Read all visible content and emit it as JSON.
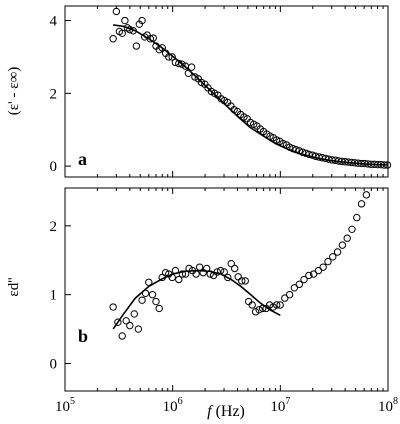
{
  "chart_data": [
    {
      "type": "scatter",
      "panel_label": "a",
      "ylabel": "(ε' - ε∞)",
      "ylim": [
        -0.3,
        4.4
      ],
      "y_ticks": [
        "0",
        "2",
        "4"
      ],
      "xscale": "log",
      "xlim": [
        100000,
        100000000
      ],
      "grid": false,
      "series": [
        {
          "style": "open-circles",
          "x": [
            280000,
            300000,
            320000,
            340000,
            360000,
            380000,
            400000,
            430000,
            460000,
            490000,
            520000,
            550000,
            580000,
            620000,
            660000,
            700000,
            750000,
            800000,
            860000,
            920000,
            990000,
            1060000,
            1140000,
            1220000,
            1310000,
            1400000,
            1500000,
            1610000,
            1730000,
            1850000,
            1990000,
            2130000,
            2290000,
            2450000,
            2630000,
            2820000,
            3020000,
            3240000,
            3470000,
            3720000,
            3990000,
            4280000,
            4590000,
            4920000,
            5280000,
            5660000,
            6070000,
            6510000,
            6980000,
            7480000,
            8020000,
            8600000,
            9220000,
            9890000,
            10600000,
            11400000,
            12200000,
            13100000,
            14000000,
            15000000,
            16100000,
            17300000,
            18500000,
            19900000,
            21300000,
            22900000,
            24500000,
            26300000,
            28200000,
            30200000,
            32400000,
            34700000,
            37200000,
            39900000,
            42800000,
            45900000,
            49200000,
            52800000,
            56600000,
            60700000,
            65100000,
            69800000,
            74800000,
            80200000,
            86000000,
            92200000,
            98900000
          ],
          "y": [
            3.5,
            4.25,
            3.7,
            3.65,
            4.0,
            3.8,
            3.75,
            3.72,
            3.3,
            3.9,
            4.0,
            3.55,
            3.6,
            3.5,
            3.52,
            3.3,
            3.2,
            3.25,
            3.1,
            3.0,
            3.0,
            2.85,
            2.82,
            2.8,
            2.75,
            2.55,
            2.72,
            2.45,
            2.4,
            2.3,
            2.25,
            2.15,
            2.05,
            2.0,
            1.95,
            1.85,
            1.8,
            1.75,
            1.65,
            1.55,
            1.5,
            1.42,
            1.35,
            1.3,
            1.2,
            1.15,
            1.1,
            1.02,
            0.95,
            0.88,
            0.82,
            0.78,
            0.72,
            0.68,
            0.62,
            0.58,
            0.52,
            0.48,
            0.45,
            0.42,
            0.38,
            0.35,
            0.32,
            0.3,
            0.27,
            0.25,
            0.23,
            0.21,
            0.19,
            0.17,
            0.16,
            0.14,
            0.13,
            0.12,
            0.11,
            0.1,
            0.09,
            0.08,
            0.07,
            0.07,
            0.06,
            0.05,
            0.05,
            0.04,
            0.04,
            0.03,
            0.03
          ]
        },
        {
          "style": "fit-line",
          "x": [
            280000,
            350000,
            450000,
            600000,
            800000,
            1000000,
            1300000,
            1700000,
            2200000,
            3000000,
            4000000,
            5200000,
            7000000,
            9000000,
            12000000,
            16000000,
            22000000,
            30000000,
            42000000,
            60000000,
            80000000,
            100000000
          ],
          "y": [
            3.88,
            3.84,
            3.72,
            3.5,
            3.25,
            3.02,
            2.74,
            2.42,
            2.1,
            1.72,
            1.37,
            1.07,
            0.82,
            0.62,
            0.45,
            0.32,
            0.22,
            0.15,
            0.1,
            0.06,
            0.04,
            0.03
          ]
        }
      ]
    },
    {
      "type": "scatter",
      "panel_label": "b",
      "ylabel": "εd''",
      "ylim": [
        -0.4,
        2.55
      ],
      "y_ticks": [
        "0",
        "1",
        "2"
      ],
      "xscale": "log",
      "xlim": [
        100000,
        100000000
      ],
      "xlabel_italic": "f",
      "xlabel_rest": " (Hz)",
      "x_ticks": [
        {
          "base": "10",
          "exp": "5"
        },
        {
          "base": "10",
          "exp": "6"
        },
        {
          "base": "10",
          "exp": "7"
        },
        {
          "base": "10",
          "exp": "8"
        }
      ],
      "grid": false,
      "series": [
        {
          "style": "open-circles",
          "x": [
            280000,
            310000,
            340000,
            370000,
            400000,
            440000,
            480000,
            520000,
            560000,
            600000,
            650000,
            700000,
            750000,
            800000,
            860000,
            920000,
            990000,
            1060000,
            1140000,
            1230000,
            1320000,
            1420000,
            1530000,
            1650000,
            1780000,
            1920000,
            2070000,
            2230000,
            2400000,
            2590000,
            2790000,
            3010000,
            3250000,
            3500000,
            3770000,
            4060000,
            4380000,
            4720000,
            5080000,
            5480000,
            5900000,
            6360000,
            6860000,
            7390000,
            7960000,
            8580000,
            9250000,
            9960000,
            11000000,
            12200000,
            13500000,
            15000000,
            16600000,
            18400000,
            20400000,
            22600000,
            25000000,
            27700000,
            30700000,
            34000000,
            37700000,
            41800000,
            46300000,
            51300000,
            56800000,
            63000000
          ],
          "y": [
            0.82,
            0.6,
            0.4,
            0.62,
            0.55,
            0.72,
            0.5,
            0.92,
            1.02,
            1.18,
            1.0,
            0.9,
            0.8,
            1.25,
            1.32,
            1.3,
            1.25,
            1.35,
            1.22,
            1.3,
            1.3,
            1.38,
            1.35,
            1.3,
            1.4,
            1.32,
            1.38,
            1.3,
            1.28,
            1.33,
            1.35,
            1.33,
            1.25,
            1.45,
            1.38,
            1.26,
            1.2,
            1.2,
            0.9,
            0.85,
            0.75,
            0.78,
            0.8,
            0.8,
            0.85,
            0.82,
            0.85,
            0.85,
            0.95,
            1.0,
            1.1,
            1.15,
            1.22,
            1.28,
            1.3,
            1.35,
            1.4,
            1.48,
            1.55,
            1.62,
            1.72,
            1.82,
            1.95,
            2.12,
            2.32,
            2.45
          ]
        },
        {
          "style": "fit-line",
          "x": [
            280000,
            350000,
            450000,
            600000,
            800000,
            1000000,
            1300000,
            1700000,
            2200000,
            2800000,
            3500000,
            4300000,
            5300000,
            6500000,
            8000000,
            10000000
          ],
          "y": [
            0.5,
            0.72,
            0.95,
            1.12,
            1.23,
            1.3,
            1.34,
            1.35,
            1.34,
            1.3,
            1.22,
            1.12,
            1.0,
            0.88,
            0.78,
            0.7
          ]
        }
      ]
    }
  ]
}
